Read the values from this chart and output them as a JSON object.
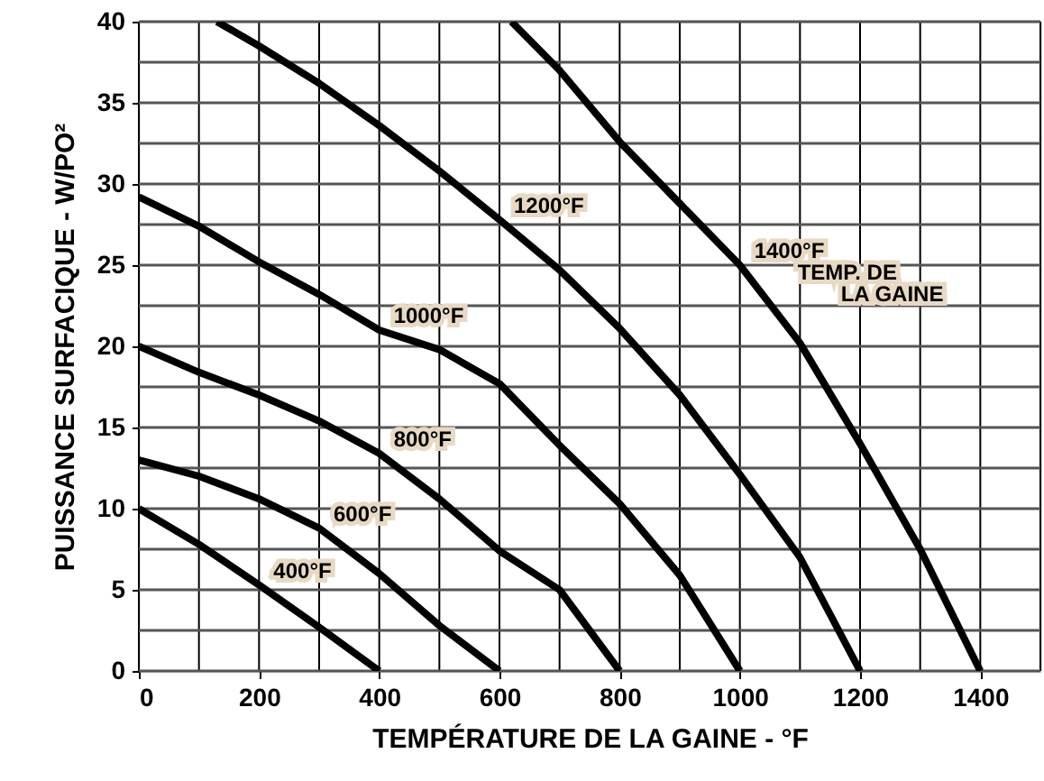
{
  "chart_data": {
    "type": "line",
    "xlabel": "TEMPÉRATURE DE LA GAINE - °F",
    "ylabel": "PUISSANCE SURFACIQUE - W/PO²",
    "series": [
      {
        "name": "400°F",
        "color": "#000000",
        "x": [
          0,
          100,
          200,
          300,
          400
        ],
        "values": [
          10,
          7.8,
          5.3,
          2.7,
          0
        ]
      },
      {
        "name": "600°F",
        "color": "#000000",
        "x": [
          0,
          100,
          200,
          300,
          400,
          500,
          600
        ],
        "values": [
          13,
          12,
          10.6,
          8.8,
          6,
          2.8,
          0
        ]
      },
      {
        "name": "800°F",
        "color": "#000000",
        "x": [
          0,
          100,
          200,
          300,
          400,
          500,
          600,
          700,
          750,
          800
        ],
        "values": [
          20,
          18.4,
          17,
          15.4,
          13.4,
          10.6,
          7.4,
          5,
          2.5,
          0
        ]
      },
      {
        "name": "1000°F",
        "color": "#000000",
        "x": [
          0,
          100,
          200,
          300,
          400,
          500,
          600,
          700,
          800,
          900,
          1000
        ],
        "values": [
          29.2,
          27.4,
          25.2,
          23.2,
          21,
          19.8,
          17.7,
          13.9,
          10.3,
          5.9,
          0
        ]
      },
      {
        "name": "1200°F",
        "color": "#000000",
        "x": [
          130,
          200,
          300,
          400,
          500,
          600,
          700,
          800,
          900,
          1000,
          1100,
          1200
        ],
        "values": [
          40,
          38.5,
          36.2,
          33.6,
          30.8,
          27.8,
          24.7,
          21.1,
          17,
          12.1,
          7,
          0
        ]
      },
      {
        "name": "1400°F",
        "color": "#000000",
        "x": [
          620,
          700,
          800,
          900,
          1000,
          1100,
          1200,
          1300,
          1400
        ],
        "values": [
          40,
          37,
          32.6,
          28.8,
          25,
          20.2,
          14,
          7.5,
          0
        ]
      }
    ],
    "annotations": [
      "TEMP. DE",
      "LA GAINE"
    ],
    "xlim": [
      0,
      1500
    ],
    "xticks": [
      0,
      {
        "value": 100,
        "label": null
      },
      200,
      {
        "value": 300,
        "label": null
      },
      400,
      {
        "value": 500,
        "label": null
      },
      600,
      {
        "value": 700,
        "label": null
      },
      800,
      {
        "value": 900,
        "label": null
      },
      1000,
      {
        "value": 1100,
        "label": null
      },
      1200,
      {
        "value": 1300,
        "label": null
      },
      1400,
      {
        "value": 1500,
        "label": null
      }
    ],
    "ylim": [
      0,
      40
    ],
    "yticks": [
      0,
      {
        "value": 2.5,
        "label": null
      },
      5,
      {
        "value": 7.5,
        "label": null
      },
      10,
      {
        "value": 12.5,
        "label": null
      },
      15,
      {
        "value": 17.5,
        "label": null
      },
      20,
      {
        "value": 22.5,
        "label": null
      },
      25,
      {
        "value": 27.5,
        "label": null
      },
      30,
      {
        "value": 32.5,
        "label": null
      },
      35,
      {
        "value": 37.5,
        "label": null
      },
      40
    ],
    "grid": true,
    "marker": "none",
    "line_style": "solid"
  }
}
